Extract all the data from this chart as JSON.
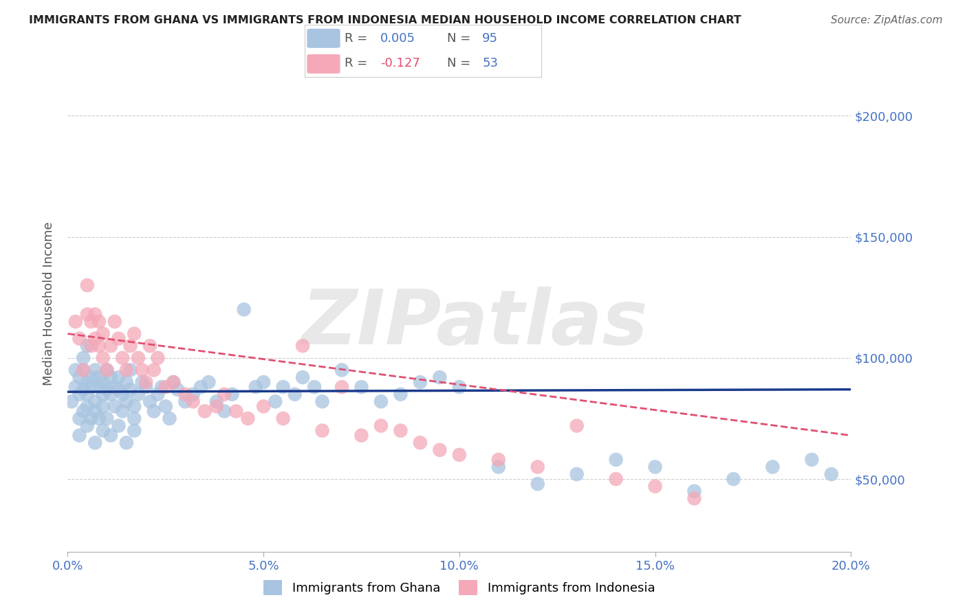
{
  "title": "IMMIGRANTS FROM GHANA VS IMMIGRANTS FROM INDONESIA MEDIAN HOUSEHOLD INCOME CORRELATION CHART",
  "source": "Source: ZipAtlas.com",
  "ylabel": "Median Household Income",
  "xlim": [
    0.0,
    0.2
  ],
  "ylim": [
    20000,
    225000
  ],
  "yticks": [
    50000,
    100000,
    150000,
    200000
  ],
  "ytick_labels": [
    "$50,000",
    "$100,000",
    "$150,000",
    "$200,000"
  ],
  "xticks": [
    0.0,
    0.05,
    0.1,
    0.15,
    0.2
  ],
  "xtick_labels": [
    "0.0%",
    "5.0%",
    "10.0%",
    "15.0%",
    "20.0%"
  ],
  "ghana_color": "#a8c4e0",
  "indonesia_color": "#f4a8b8",
  "ghana_R": 0.005,
  "ghana_N": 95,
  "indonesia_R": -0.127,
  "indonesia_N": 53,
  "ghana_line_color": "#1a3a8c",
  "indonesia_line_color": "#e05070",
  "axis_label_color": "#4472c4",
  "background_color": "#ffffff",
  "title_color": "#222222",
  "watermark": "ZIPatlas",
  "ghana_x": [
    0.001,
    0.002,
    0.002,
    0.003,
    0.003,
    0.003,
    0.004,
    0.004,
    0.004,
    0.004,
    0.005,
    0.005,
    0.005,
    0.005,
    0.006,
    0.006,
    0.006,
    0.007,
    0.007,
    0.007,
    0.008,
    0.008,
    0.008,
    0.009,
    0.009,
    0.009,
    0.01,
    0.01,
    0.01,
    0.011,
    0.011,
    0.012,
    0.012,
    0.013,
    0.013,
    0.014,
    0.014,
    0.015,
    0.015,
    0.016,
    0.016,
    0.017,
    0.017,
    0.018,
    0.019,
    0.02,
    0.021,
    0.022,
    0.023,
    0.024,
    0.025,
    0.026,
    0.027,
    0.028,
    0.03,
    0.032,
    0.034,
    0.036,
    0.038,
    0.04,
    0.042,
    0.045,
    0.048,
    0.05,
    0.053,
    0.055,
    0.058,
    0.06,
    0.063,
    0.065,
    0.07,
    0.075,
    0.08,
    0.085,
    0.09,
    0.095,
    0.1,
    0.11,
    0.12,
    0.13,
    0.14,
    0.15,
    0.16,
    0.17,
    0.18,
    0.19,
    0.195,
    0.003,
    0.005,
    0.007,
    0.009,
    0.011,
    0.013,
    0.015,
    0.017
  ],
  "ghana_y": [
    82000,
    95000,
    88000,
    75000,
    92000,
    85000,
    100000,
    87000,
    78000,
    95000,
    85000,
    90000,
    105000,
    80000,
    92000,
    88000,
    75000,
    95000,
    82000,
    78000,
    88000,
    92000,
    75000,
    85000,
    80000,
    90000,
    95000,
    87000,
    75000,
    92000,
    85000,
    88000,
    80000,
    87000,
    92000,
    85000,
    78000,
    90000,
    82000,
    95000,
    87000,
    80000,
    75000,
    85000,
    90000,
    88000,
    82000,
    78000,
    85000,
    88000,
    80000,
    75000,
    90000,
    87000,
    82000,
    85000,
    88000,
    90000,
    82000,
    78000,
    85000,
    120000,
    88000,
    90000,
    82000,
    88000,
    85000,
    92000,
    88000,
    82000,
    95000,
    88000,
    82000,
    85000,
    90000,
    92000,
    88000,
    55000,
    48000,
    52000,
    58000,
    55000,
    45000,
    50000,
    55000,
    58000,
    52000,
    68000,
    72000,
    65000,
    70000,
    68000,
    72000,
    65000,
    70000
  ],
  "indonesia_x": [
    0.002,
    0.003,
    0.004,
    0.005,
    0.005,
    0.006,
    0.006,
    0.007,
    0.007,
    0.008,
    0.008,
    0.009,
    0.009,
    0.01,
    0.011,
    0.012,
    0.013,
    0.014,
    0.015,
    0.016,
    0.017,
    0.018,
    0.019,
    0.02,
    0.021,
    0.022,
    0.023,
    0.025,
    0.027,
    0.03,
    0.032,
    0.035,
    0.038,
    0.04,
    0.043,
    0.046,
    0.05,
    0.055,
    0.06,
    0.065,
    0.07,
    0.075,
    0.08,
    0.085,
    0.09,
    0.095,
    0.1,
    0.11,
    0.12,
    0.13,
    0.14,
    0.15,
    0.16
  ],
  "indonesia_y": [
    115000,
    108000,
    95000,
    130000,
    118000,
    105000,
    115000,
    118000,
    108000,
    105000,
    115000,
    110000,
    100000,
    95000,
    105000,
    115000,
    108000,
    100000,
    95000,
    105000,
    110000,
    100000,
    95000,
    90000,
    105000,
    95000,
    100000,
    88000,
    90000,
    85000,
    82000,
    78000,
    80000,
    85000,
    78000,
    75000,
    80000,
    75000,
    105000,
    70000,
    88000,
    68000,
    72000,
    70000,
    65000,
    62000,
    60000,
    58000,
    55000,
    72000,
    50000,
    47000,
    42000
  ]
}
